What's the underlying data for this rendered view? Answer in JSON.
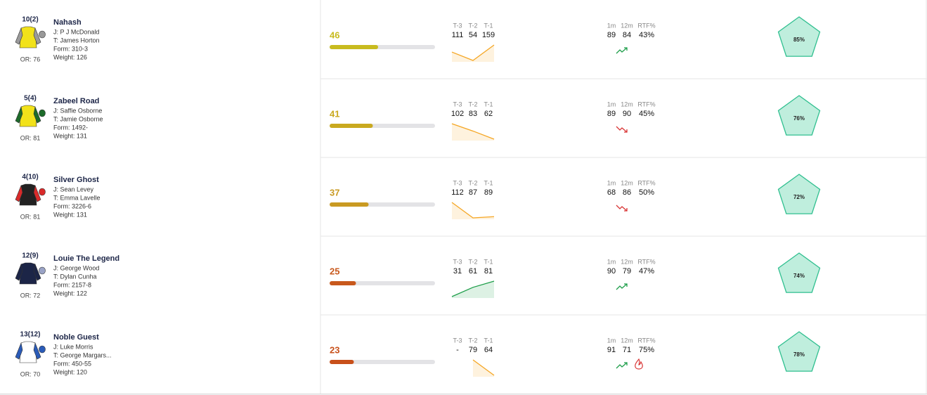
{
  "header": {
    "last3_labels": [
      "T-3",
      "T-2",
      "T-1"
    ],
    "metric_labels": [
      "1m",
      "12m",
      "RTF%"
    ]
  },
  "rows": [
    {
      "number": "10(2)",
      "or": "OR: 76",
      "name": "Nahash",
      "jockey": "J: P J McDonald",
      "trainer": "T: James Horton",
      "form": "Form: 310-3",
      "weight": "Weight: 126",
      "score": 46,
      "score_color": "#c8bb1f",
      "last3": [
        "111",
        "54",
        "159"
      ],
      "spark_color": "#f5a623",
      "metrics": [
        "89",
        "84",
        "43%"
      ],
      "trend": "up",
      "hot": false,
      "rating": "85%"
    },
    {
      "number": "5(4)",
      "or": "OR: 81",
      "name": "Zabeel Road",
      "jockey": "J: Saffie Osborne",
      "trainer": "T: Jamie Osborne",
      "form": "Form: 1492-",
      "weight": "Weight: 131",
      "score": 41,
      "score_color": "#c9a91f",
      "last3": [
        "102",
        "83",
        "62"
      ],
      "spark_color": "#f5a623",
      "metrics": [
        "89",
        "90",
        "45%"
      ],
      "trend": "down",
      "hot": false,
      "rating": "76%"
    },
    {
      "number": "4(10)",
      "or": "OR: 81",
      "name": "Silver Ghost",
      "jockey": "J: Sean Levey",
      "trainer": "T: Emma Lavelle",
      "form": "Form: 3226-6",
      "weight": "Weight: 131",
      "score": 37,
      "score_color": "#c99a22",
      "last3": [
        "112",
        "87",
        "89"
      ],
      "spark_color": "#f5a623",
      "metrics": [
        "68",
        "86",
        "50%"
      ],
      "trend": "down",
      "hot": false,
      "rating": "72%"
    },
    {
      "number": "12(9)",
      "or": "OR: 72",
      "name": "Louie The Legend",
      "jockey": "J: George Wood",
      "trainer": "T: Dylan Cunha",
      "form": "Form: 2157-8",
      "weight": "Weight: 122",
      "score": 25,
      "score_color": "#c8581c",
      "last3": [
        "31",
        "61",
        "81"
      ],
      "spark_color": "#1e9e4a",
      "metrics": [
        "90",
        "79",
        "47%"
      ],
      "trend": "up",
      "hot": false,
      "rating": "74%"
    },
    {
      "number": "13(12)",
      "or": "OR: 70",
      "name": "Noble Guest",
      "jockey": "J: Luke Morris",
      "trainer": "T: George Margars...",
      "form": "Form: 450-55",
      "weight": "Weight: 120",
      "score": 23,
      "score_color": "#c8501a",
      "last3": [
        "-",
        "79",
        "64"
      ],
      "spark_color": "#f5a623",
      "metrics": [
        "91",
        "71",
        "75%"
      ],
      "trend": "up",
      "hot": true,
      "rating": "78%"
    }
  ]
}
